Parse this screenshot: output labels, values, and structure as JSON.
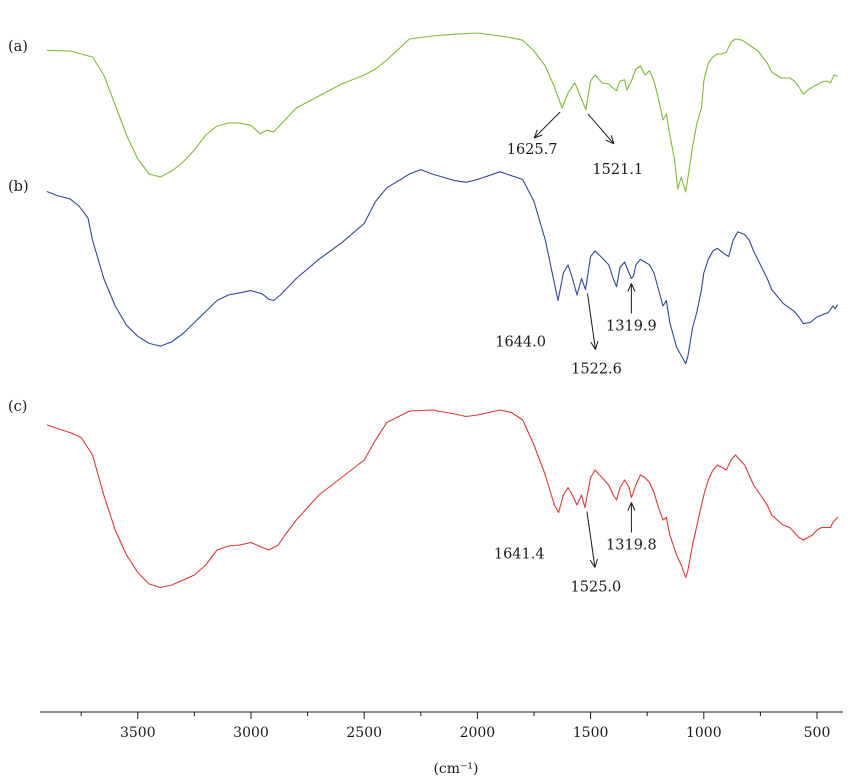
{
  "chart_data": {
    "type": "line",
    "title": "",
    "xlabel": "(cm⁻¹)",
    "ylabel": "",
    "xlim": [
      3900,
      400
    ],
    "x_reversed": true,
    "y_axis_shown": false,
    "grid": false,
    "legend": "none",
    "ticks": [
      3500,
      3000,
      2500,
      2000,
      1500,
      1000,
      500
    ],
    "tick_labels": [
      "3500",
      "3000",
      "2500",
      "2000",
      "1500",
      "1000",
      "500"
    ],
    "minor_ticks": [
      3750,
      3250,
      2750,
      2250,
      1750,
      1250,
      750
    ],
    "series": [
      {
        "name": "(a)",
        "color": "#7dbb3a",
        "points": [
          [
            3900,
            0.9
          ],
          [
            3800,
            1.0
          ],
          [
            3700,
            2.0
          ],
          [
            3650,
            5.0
          ],
          [
            3600,
            10.0
          ],
          [
            3550,
            15.0
          ],
          [
            3500,
            19.0
          ],
          [
            3450,
            21.5
          ],
          [
            3400,
            22.0
          ],
          [
            3350,
            21.0
          ],
          [
            3300,
            19.5
          ],
          [
            3250,
            17.5
          ],
          [
            3200,
            15.0
          ],
          [
            3150,
            13.5
          ],
          [
            3100,
            13.0
          ],
          [
            3050,
            13.0
          ],
          [
            3000,
            13.4
          ],
          [
            2960,
            14.8
          ],
          [
            2930,
            14.2
          ],
          [
            2900,
            14.5
          ],
          [
            2850,
            12.5
          ],
          [
            2800,
            10.5
          ],
          [
            2700,
            8.5
          ],
          [
            2600,
            6.5
          ],
          [
            2500,
            5.0
          ],
          [
            2450,
            4.0
          ],
          [
            2400,
            2.5
          ],
          [
            2300,
            -1.0
          ],
          [
            2200,
            -1.5
          ],
          [
            2100,
            -1.8
          ],
          [
            2000,
            -2.0
          ],
          [
            1900,
            -1.5
          ],
          [
            1850,
            -1.2
          ],
          [
            1800,
            -0.8
          ],
          [
            1750,
            1.0
          ],
          [
            1700,
            3.5
          ],
          [
            1660,
            7.0
          ],
          [
            1625.7,
            10.5
          ],
          [
            1600,
            8.0
          ],
          [
            1570,
            6.3
          ],
          [
            1540,
            9.0
          ],
          [
            1521.1,
            10.8
          ],
          [
            1500,
            6.0
          ],
          [
            1480,
            5.0
          ],
          [
            1450,
            6.3
          ],
          [
            1420,
            6.5
          ],
          [
            1400,
            7.2
          ],
          [
            1385,
            7.6
          ],
          [
            1370,
            6.0
          ],
          [
            1350,
            5.8
          ],
          [
            1340,
            7.5
          ],
          [
            1320,
            6.0
          ],
          [
            1300,
            4.0
          ],
          [
            1280,
            3.5
          ],
          [
            1260,
            5.0
          ],
          [
            1240,
            4.3
          ],
          [
            1220,
            6.0
          ],
          [
            1200,
            9.0
          ],
          [
            1180,
            12.5
          ],
          [
            1165,
            11.5
          ],
          [
            1150,
            15.0
          ],
          [
            1130,
            19.0
          ],
          [
            1115,
            24.0
          ],
          [
            1100,
            22.0
          ],
          [
            1080,
            24.5
          ],
          [
            1070,
            22.0
          ],
          [
            1050,
            17.0
          ],
          [
            1030,
            13.0
          ],
          [
            1010,
            10.5
          ],
          [
            1000,
            6.0
          ],
          [
            980,
            3.0
          ],
          [
            960,
            2.0
          ],
          [
            940,
            1.5
          ],
          [
            920,
            1.5
          ],
          [
            900,
            1.2
          ],
          [
            880,
            -0.5
          ],
          [
            860,
            -1.0
          ],
          [
            830,
            -0.8
          ],
          [
            800,
            0.0
          ],
          [
            760,
            1.0
          ],
          [
            720,
            3.0
          ],
          [
            700,
            4.5
          ],
          [
            660,
            5.5
          ],
          [
            620,
            5.5
          ],
          [
            600,
            6.0
          ],
          [
            580,
            7.0
          ],
          [
            560,
            8.2
          ],
          [
            540,
            7.5
          ],
          [
            520,
            7.0
          ],
          [
            500,
            6.6
          ],
          [
            480,
            6.2
          ],
          [
            460,
            6.0
          ],
          [
            440,
            6.3
          ],
          [
            425,
            5.0
          ],
          [
            410,
            5.2
          ]
        ]
      },
      {
        "name": "(b)",
        "color": "#2d4a9a",
        "points": [
          [
            3900,
            1.2
          ],
          [
            3850,
            2.0
          ],
          [
            3800,
            2.5
          ],
          [
            3760,
            3.8
          ],
          [
            3720,
            6.0
          ],
          [
            3700,
            10.0
          ],
          [
            3650,
            17.0
          ],
          [
            3600,
            22.0
          ],
          [
            3550,
            25.5
          ],
          [
            3500,
            27.5
          ],
          [
            3450,
            28.8
          ],
          [
            3400,
            29.3
          ],
          [
            3350,
            28.5
          ],
          [
            3300,
            27.0
          ],
          [
            3250,
            25.0
          ],
          [
            3200,
            23.0
          ],
          [
            3150,
            21.0
          ],
          [
            3100,
            20.0
          ],
          [
            3050,
            19.6
          ],
          [
            3000,
            19.2
          ],
          [
            2950,
            19.8
          ],
          [
            2920,
            20.8
          ],
          [
            2900,
            21.0
          ],
          [
            2870,
            20.0
          ],
          [
            2800,
            17.0
          ],
          [
            2700,
            13.5
          ],
          [
            2600,
            10.5
          ],
          [
            2500,
            7.0
          ],
          [
            2450,
            3.0
          ],
          [
            2400,
            0.5
          ],
          [
            2300,
            -2.0
          ],
          [
            2250,
            -2.8
          ],
          [
            2200,
            -2.0
          ],
          [
            2100,
            -0.8
          ],
          [
            2050,
            -0.5
          ],
          [
            2000,
            -1.0
          ],
          [
            1900,
            -2.4
          ],
          [
            1800,
            -1.0
          ],
          [
            1750,
            3.0
          ],
          [
            1700,
            10.0
          ],
          [
            1644,
            21.0
          ],
          [
            1620,
            16.0
          ],
          [
            1600,
            14.5
          ],
          [
            1580,
            17.0
          ],
          [
            1560,
            20.0
          ],
          [
            1540,
            17.0
          ],
          [
            1522.6,
            19.0
          ],
          [
            1500,
            13.0
          ],
          [
            1480,
            12.0
          ],
          [
            1450,
            13.2
          ],
          [
            1420,
            14.5
          ],
          [
            1400,
            17.0
          ],
          [
            1385,
            18.5
          ],
          [
            1370,
            15.0
          ],
          [
            1350,
            14.0
          ],
          [
            1340,
            15.0
          ],
          [
            1320,
            17.0
          ],
          [
            1310,
            16.5
          ],
          [
            1300,
            14.5
          ],
          [
            1280,
            13.5
          ],
          [
            1260,
            14.0
          ],
          [
            1240,
            14.5
          ],
          [
            1220,
            16.0
          ],
          [
            1200,
            19.0
          ],
          [
            1180,
            22.0
          ],
          [
            1165,
            21.0
          ],
          [
            1150,
            25.0
          ],
          [
            1120,
            29.5
          ],
          [
            1100,
            31.0
          ],
          [
            1080,
            32.5
          ],
          [
            1070,
            31.0
          ],
          [
            1050,
            26.0
          ],
          [
            1030,
            23.0
          ],
          [
            1010,
            19.0
          ],
          [
            1000,
            16.0
          ],
          [
            980,
            13.5
          ],
          [
            960,
            12.0
          ],
          [
            940,
            11.5
          ],
          [
            910,
            12.5
          ],
          [
            890,
            13.0
          ],
          [
            870,
            10.0
          ],
          [
            850,
            8.5
          ],
          [
            820,
            9.0
          ],
          [
            800,
            10.0
          ],
          [
            780,
            12.0
          ],
          [
            750,
            14.5
          ],
          [
            720,
            17.0
          ],
          [
            700,
            19.0
          ],
          [
            650,
            21.5
          ],
          [
            600,
            23.0
          ],
          [
            580,
            24.0
          ],
          [
            560,
            25.2
          ],
          [
            530,
            25.0
          ],
          [
            500,
            24.0
          ],
          [
            470,
            23.5
          ],
          [
            450,
            23.2
          ],
          [
            430,
            22.0
          ],
          [
            420,
            22.5
          ],
          [
            410,
            21.8
          ]
        ]
      },
      {
        "name": "(c)",
        "color": "#d93a3a",
        "points": [
          [
            3900,
            4.0
          ],
          [
            3850,
            4.8
          ],
          [
            3800,
            5.5
          ],
          [
            3750,
            6.5
          ],
          [
            3700,
            10.0
          ],
          [
            3650,
            18.0
          ],
          [
            3600,
            25.0
          ],
          [
            3550,
            30.0
          ],
          [
            3500,
            33.5
          ],
          [
            3450,
            35.8
          ],
          [
            3400,
            36.5
          ],
          [
            3350,
            36.0
          ],
          [
            3300,
            35.0
          ],
          [
            3250,
            34.0
          ],
          [
            3200,
            32.0
          ],
          [
            3150,
            29.0
          ],
          [
            3100,
            28.2
          ],
          [
            3050,
            28.0
          ],
          [
            3000,
            27.5
          ],
          [
            2950,
            28.5
          ],
          [
            2920,
            29.0
          ],
          [
            2880,
            28.0
          ],
          [
            2850,
            26.0
          ],
          [
            2800,
            23.0
          ],
          [
            2700,
            18.0
          ],
          [
            2600,
            14.5
          ],
          [
            2500,
            11.0
          ],
          [
            2450,
            7.0
          ],
          [
            2400,
            3.5
          ],
          [
            2300,
            1.2
          ],
          [
            2200,
            1.0
          ],
          [
            2100,
            1.8
          ],
          [
            2050,
            2.3
          ],
          [
            2000,
            2.0
          ],
          [
            1900,
            1.0
          ],
          [
            1850,
            1.5
          ],
          [
            1800,
            3.0
          ],
          [
            1750,
            8.0
          ],
          [
            1700,
            14.0
          ],
          [
            1660,
            20.0
          ],
          [
            1641.4,
            21.5
          ],
          [
            1620,
            18.0
          ],
          [
            1600,
            16.5
          ],
          [
            1580,
            18.0
          ],
          [
            1560,
            20.0
          ],
          [
            1540,
            18.0
          ],
          [
            1525,
            20.5
          ],
          [
            1500,
            14.5
          ],
          [
            1480,
            13.0
          ],
          [
            1450,
            14.5
          ],
          [
            1420,
            16.0
          ],
          [
            1400,
            18.0
          ],
          [
            1385,
            19.0
          ],
          [
            1370,
            16.5
          ],
          [
            1350,
            15.0
          ],
          [
            1330,
            16.5
          ],
          [
            1319.8,
            18.5
          ],
          [
            1300,
            16.0
          ],
          [
            1280,
            14.0
          ],
          [
            1260,
            14.5
          ],
          [
            1240,
            15.5
          ],
          [
            1220,
            17.5
          ],
          [
            1200,
            20.5
          ],
          [
            1180,
            23.0
          ],
          [
            1165,
            22.5
          ],
          [
            1150,
            26.0
          ],
          [
            1120,
            30.0
          ],
          [
            1100,
            32.0
          ],
          [
            1080,
            34.5
          ],
          [
            1070,
            33.0
          ],
          [
            1050,
            28.0
          ],
          [
            1030,
            24.0
          ],
          [
            1000,
            18.0
          ],
          [
            980,
            15.0
          ],
          [
            960,
            13.0
          ],
          [
            940,
            12.0
          ],
          [
            920,
            12.5
          ],
          [
            900,
            13.0
          ],
          [
            880,
            11.0
          ],
          [
            860,
            10.0
          ],
          [
            840,
            11.0
          ],
          [
            820,
            12.0
          ],
          [
            800,
            14.0
          ],
          [
            780,
            16.0
          ],
          [
            750,
            18.0
          ],
          [
            720,
            20.0
          ],
          [
            700,
            22.0
          ],
          [
            650,
            24.0
          ],
          [
            620,
            24.5
          ],
          [
            600,
            25.5
          ],
          [
            580,
            26.5
          ],
          [
            560,
            27.0
          ],
          [
            540,
            26.5
          ],
          [
            520,
            26.0
          ],
          [
            500,
            25.0
          ],
          [
            480,
            24.5
          ],
          [
            460,
            24.5
          ],
          [
            440,
            24.5
          ],
          [
            430,
            23.5
          ],
          [
            420,
            23.0
          ],
          [
            410,
            22.5
          ]
        ]
      }
    ],
    "annotations": [
      {
        "series": 0,
        "label": "1625.7",
        "x": 1625.7
      },
      {
        "series": 0,
        "label": "1521.1",
        "x": 1521.1
      },
      {
        "series": 1,
        "label": "1644.0",
        "x": 1644.0
      },
      {
        "series": 1,
        "label": "1522.6",
        "x": 1522.6
      },
      {
        "series": 1,
        "label": "1319.9",
        "x": 1319.9
      },
      {
        "series": 2,
        "label": "1641.4",
        "x": 1641.4
      },
      {
        "series": 2,
        "label": "1525.0",
        "x": 1525.0
      },
      {
        "series": 2,
        "label": "1319.8",
        "x": 1319.8
      }
    ]
  }
}
